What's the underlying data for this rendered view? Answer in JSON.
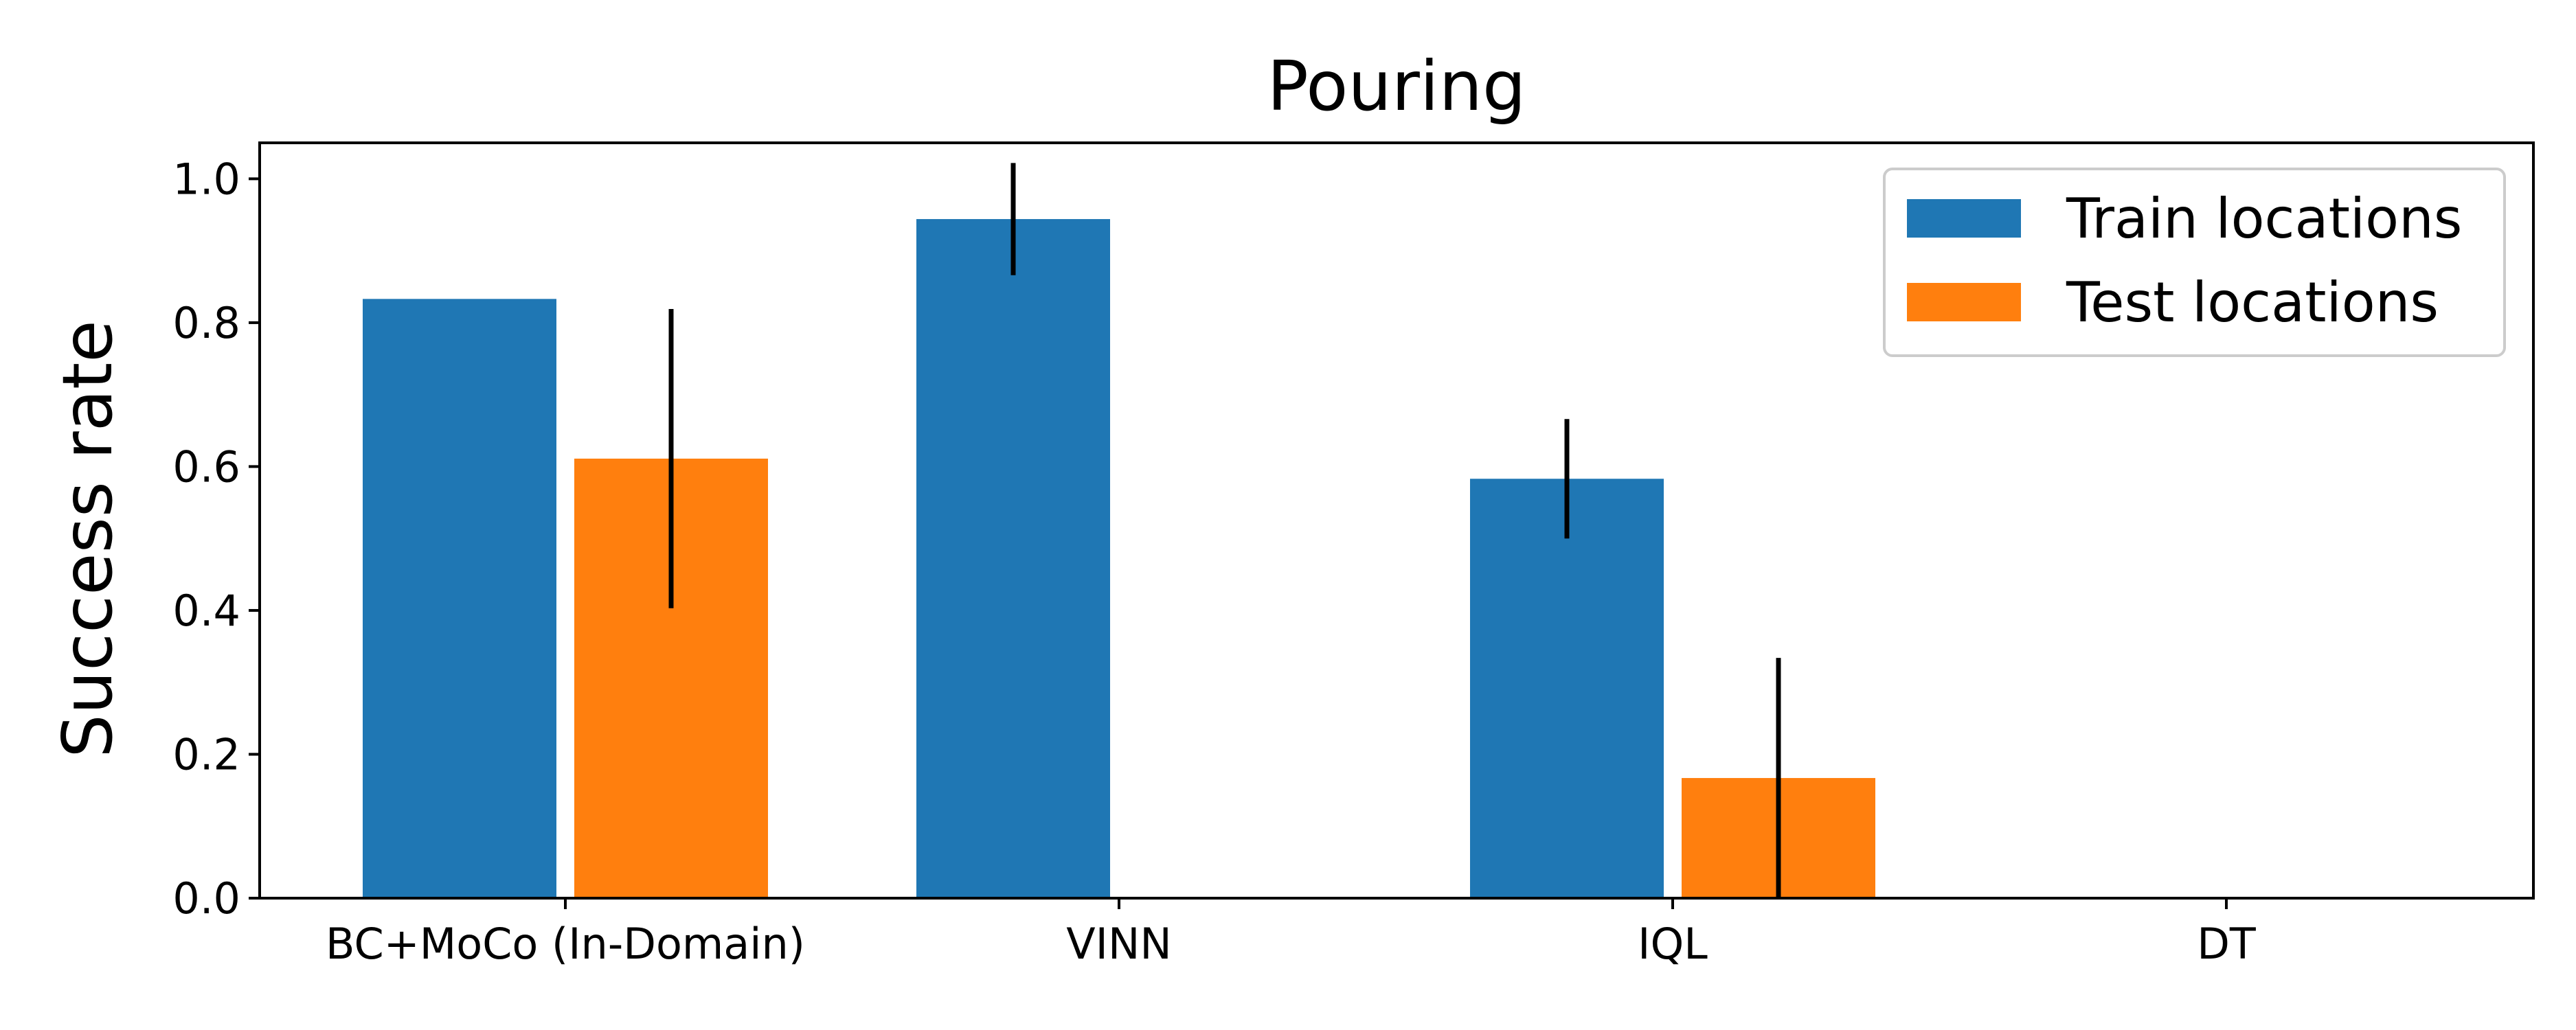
{
  "chart_data": {
    "type": "bar",
    "title": "Pouring",
    "xlabel": "",
    "ylabel": "Success rate",
    "categories": [
      "BC+MoCo (In-Domain)",
      "VINN",
      "IQL",
      "DT"
    ],
    "ylim": [
      0,
      1.05
    ],
    "yticks": [
      "0.0",
      "0.2",
      "0.4",
      "0.6",
      "0.8",
      "1.0"
    ],
    "grid": false,
    "legend_position": "top-right",
    "series": [
      {
        "name": "Train locations",
        "color": "#1f77b4",
        "values": [
          0.833,
          0.944,
          0.583,
          0.0
        ],
        "error": [
          0.0,
          0.078,
          0.083,
          0.0
        ]
      },
      {
        "name": "Test locations",
        "color": "#ff7f0e",
        "values": [
          0.611,
          0.0,
          0.167,
          0.0
        ],
        "error": [
          0.208,
          0.0,
          0.167,
          0.0
        ]
      }
    ]
  }
}
